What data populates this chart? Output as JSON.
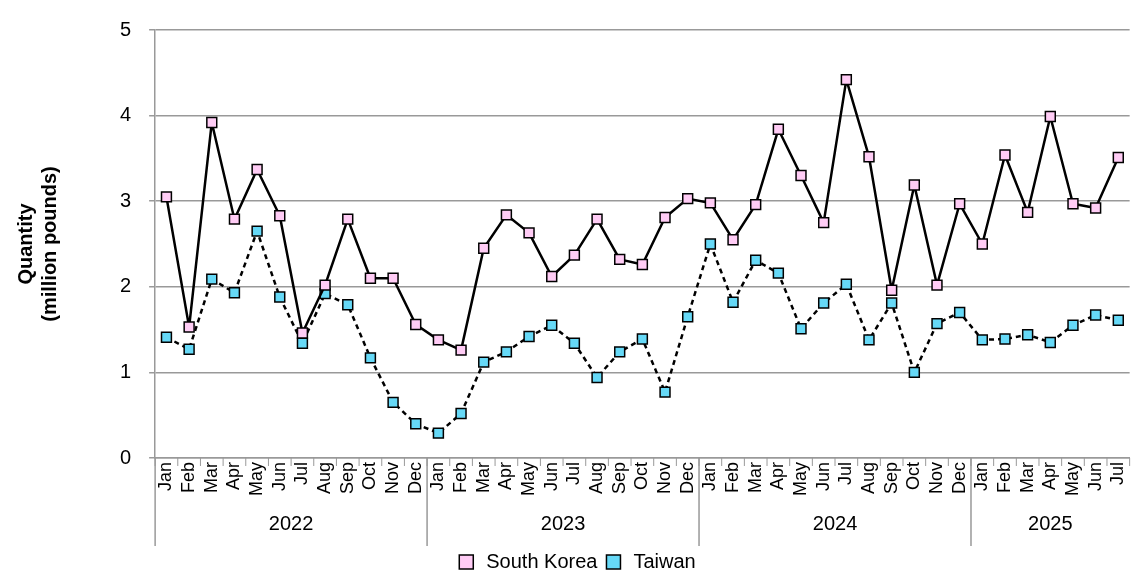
{
  "chart_data": {
    "type": "line",
    "ylabel": "Quantity\n(million pounds)",
    "categories": [
      "Jan",
      "Feb",
      "Mar",
      "Apr",
      "May",
      "Jun",
      "Jul",
      "Aug",
      "Sep",
      "Oct",
      "Nov",
      "Dec",
      "Jan",
      "Feb",
      "Mar",
      "Apr",
      "May",
      "Jun",
      "Jul",
      "Aug",
      "Sep",
      "Oct",
      "Nov",
      "Dec",
      "Jan",
      "Feb",
      "Mar",
      "Apr",
      "May",
      "Jun",
      "Jul",
      "Aug",
      "Sep",
      "Oct",
      "Nov",
      "Dec",
      "Jan",
      "Feb",
      "Mar",
      "Apr",
      "May",
      "Jun",
      "Jul"
    ],
    "annotations": [
      "2022",
      "2023",
      "2024",
      "2025"
    ],
    "series": [
      {
        "name": "South Korea",
        "color": "#ffccf5",
        "line_style": "solid",
        "values": [
          3.05,
          1.53,
          3.92,
          2.79,
          3.37,
          2.83,
          1.46,
          2.02,
          2.79,
          2.1,
          2.1,
          1.56,
          1.38,
          1.26,
          2.45,
          2.84,
          2.63,
          2.12,
          2.37,
          2.79,
          2.32,
          2.26,
          2.81,
          3.03,
          2.98,
          2.55,
          2.96,
          3.84,
          3.3,
          2.75,
          4.42,
          3.52,
          1.96,
          3.19,
          2.02,
          2.97,
          2.5,
          3.54,
          2.87,
          3.99,
          2.97,
          2.92,
          3.51
        ]
      },
      {
        "name": "Taiwan",
        "color": "#66d9f7",
        "line_style": "dashed",
        "values": [
          1.41,
          1.27,
          2.09,
          1.93,
          2.65,
          1.88,
          1.34,
          1.92,
          1.79,
          1.17,
          0.65,
          0.4,
          0.29,
          0.52,
          1.12,
          1.24,
          1.42,
          1.55,
          1.34,
          0.94,
          1.24,
          1.39,
          0.77,
          1.65,
          2.5,
          1.82,
          2.31,
          2.16,
          1.51,
          1.81,
          2.03,
          1.38,
          1.81,
          1.0,
          1.57,
          1.7,
          1.38,
          1.39,
          1.44,
          1.35,
          1.55,
          1.67,
          1.61
        ]
      }
    ],
    "ylim": [
      0,
      5
    ],
    "yticks": [
      0,
      1,
      2,
      3,
      4,
      5
    ],
    "grid": "y",
    "legend": "bottom",
    "marker": "square"
  }
}
